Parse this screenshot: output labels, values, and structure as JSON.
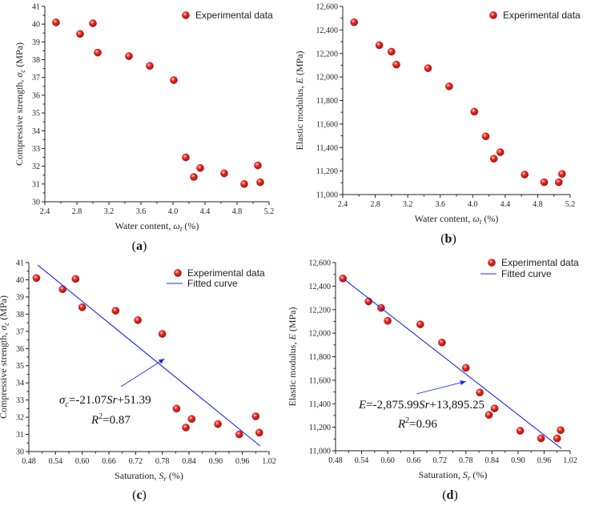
{
  "chart_data": [
    {
      "id": "a",
      "type": "scatter",
      "panel_label": "(a)",
      "xlabel": "Water content,",
      "xlabel_symbol": "ω",
      "xlabel_sub": "t",
      "xlabel_unit": "(%)",
      "ylabel": "Compressive strength,",
      "ylabel_symbol": "σ",
      "ylabel_sub": "c",
      "ylabel_unit": "(MPa)",
      "xlim": [
        2.4,
        5.2
      ],
      "ylim": [
        30,
        41
      ],
      "xticks": [
        2.4,
        2.8,
        3.2,
        3.6,
        4.0,
        4.4,
        4.8,
        5.2
      ],
      "xtick_labels": [
        "2.4",
        "2.8",
        "3.2",
        "3.6",
        "4.0",
        "4.4",
        "4.8",
        "5.2"
      ],
      "yticks": [
        30,
        31,
        32,
        33,
        34,
        35,
        36,
        37,
        38,
        39,
        40,
        41
      ],
      "ytick_labels": [
        "30",
        "31",
        "32",
        "33",
        "34",
        "35",
        "36",
        "37",
        "38",
        "39",
        "40",
        "41"
      ],
      "legend": [
        "Experimental data"
      ],
      "series": [
        {
          "name": "Experimental data",
          "x": [
            2.54,
            2.84,
            3.0,
            3.06,
            3.45,
            3.71,
            4.01,
            4.16,
            4.26,
            4.34,
            4.64,
            4.89,
            5.06,
            5.09
          ],
          "y": [
            40.1,
            39.45,
            40.05,
            38.4,
            38.2,
            37.65,
            36.85,
            32.5,
            31.4,
            31.9,
            31.6,
            31.0,
            32.05,
            31.1
          ]
        }
      ]
    },
    {
      "id": "b",
      "type": "scatter",
      "panel_label": "(b)",
      "xlabel": "Water content,",
      "xlabel_symbol": "ω",
      "xlabel_sub": "t",
      "xlabel_unit": "(%)",
      "ylabel": "Elastic modulus,",
      "ylabel_symbol": "E",
      "ylabel_sub": "",
      "ylabel_unit": "(MPa)",
      "xlim": [
        2.4,
        5.2
      ],
      "ylim": [
        11000,
        12600
      ],
      "xticks": [
        2.4,
        2.8,
        3.2,
        3.6,
        4.0,
        4.4,
        4.8,
        5.2
      ],
      "xtick_labels": [
        "2.4",
        "2.8",
        "3.2",
        "3.6",
        "4.0",
        "4.4",
        "4.8",
        "5.2"
      ],
      "yticks": [
        11000,
        11200,
        11400,
        11600,
        11800,
        12000,
        12200,
        12400,
        12600
      ],
      "ytick_labels": [
        "11,000",
        "11,200",
        "11,400",
        "11,600",
        "11,800",
        "12,000",
        "12,200",
        "12,400",
        "12,600"
      ],
      "legend": [
        "Experimental data"
      ],
      "series": [
        {
          "name": "Experimental data",
          "x": [
            2.54,
            2.85,
            3.0,
            3.06,
            3.45,
            3.71,
            4.02,
            4.16,
            4.26,
            4.34,
            4.64,
            4.88,
            5.06,
            5.1
          ],
          "y": [
            12465,
            12270,
            12215,
            12105,
            12075,
            11920,
            11705,
            11495,
            11305,
            11360,
            11170,
            11105,
            11105,
            11175
          ]
        }
      ]
    },
    {
      "id": "c",
      "type": "scatter",
      "panel_label": "(c)",
      "xlabel": "Saturation,",
      "xlabel_symbol": "S",
      "xlabel_sub": "r",
      "xlabel_unit": "(%)",
      "ylabel": "Compressive strength,",
      "ylabel_symbol": "σ",
      "ylabel_sub": "c",
      "ylabel_unit": "(MPa)",
      "xlim": [
        0.48,
        1.02
      ],
      "ylim": [
        30,
        41
      ],
      "xticks": [
        0.48,
        0.54,
        0.6,
        0.66,
        0.72,
        0.78,
        0.84,
        0.9,
        0.96,
        1.02
      ],
      "xtick_labels": [
        "0.48",
        "0.54",
        "0.60",
        "0.66",
        "0.72",
        "0.78",
        "0.84",
        "0.90",
        "0.96",
        "1.02"
      ],
      "yticks": [
        30,
        31,
        32,
        33,
        34,
        35,
        36,
        37,
        38,
        39,
        40,
        41
      ],
      "ytick_labels": [
        "30",
        "31",
        "32",
        "33",
        "34",
        "35",
        "36",
        "37",
        "38",
        "39",
        "40",
        "41"
      ],
      "legend": [
        "Experimental data",
        "Fitted curve"
      ],
      "series": [
        {
          "name": "Experimental data",
          "x": [
            0.497,
            0.556,
            0.585,
            0.6,
            0.675,
            0.725,
            0.78,
            0.812,
            0.833,
            0.846,
            0.905,
            0.953,
            0.99,
            0.998
          ],
          "y": [
            40.1,
            39.45,
            40.05,
            38.4,
            38.2,
            37.65,
            36.85,
            32.5,
            31.4,
            31.9,
            31.6,
            31.0,
            32.05,
            31.1
          ]
        },
        {
          "name": "Fitted curve",
          "type": "line",
          "x": [
            0.5,
            1.0
          ],
          "y": [
            40.855,
            30.32
          ]
        }
      ],
      "equation_lhs": "σ",
      "equation_lhs_sub": "c",
      "equation_rhs_a": "=-21.07",
      "equation_var": "Sr",
      "equation_rhs_b": "+51.39",
      "r2_symbol": "R",
      "r2_sup": "2",
      "r2_value": "=0.87",
      "arrow_target": [
        0.785,
        35.4
      ]
    },
    {
      "id": "d",
      "type": "scatter",
      "panel_label": "(d)",
      "xlabel": "Saturation,",
      "xlabel_symbol": "S",
      "xlabel_sub": "r",
      "xlabel_unit": "(%)",
      "ylabel": "Elastic modulus,",
      "ylabel_symbol": "E",
      "ylabel_sub": "",
      "ylabel_unit": "(MPa)",
      "xlim": [
        0.48,
        1.02
      ],
      "ylim": [
        11000,
        12600
      ],
      "xticks": [
        0.48,
        0.54,
        0.6,
        0.66,
        0.72,
        0.78,
        0.84,
        0.9,
        0.96,
        1.02
      ],
      "xtick_labels": [
        "0.48",
        "0.54",
        "0.60",
        "0.66",
        "0.72",
        "0.78",
        "0.84",
        "0.90",
        "0.96",
        "1.02"
      ],
      "yticks": [
        11000,
        11200,
        11400,
        11600,
        11800,
        12000,
        12200,
        12400,
        12600
      ],
      "ytick_labels": [
        "11,000",
        "11,200",
        "11,400",
        "11,600",
        "11,800",
        "12,000",
        "12,200",
        "12,400",
        "12,600"
      ],
      "legend": [
        "Experimental data",
        "Fitted curve"
      ],
      "series": [
        {
          "name": "Experimental data",
          "x": [
            0.497,
            0.556,
            0.585,
            0.6,
            0.675,
            0.725,
            0.78,
            0.812,
            0.833,
            0.846,
            0.905,
            0.953,
            0.99,
            0.998
          ],
          "y": [
            12465,
            12270,
            12215,
            12105,
            12075,
            11920,
            11705,
            11495,
            11305,
            11360,
            11170,
            11105,
            11105,
            11175
          ]
        },
        {
          "name": "Fitted curve",
          "type": "line",
          "x": [
            0.5,
            1.0
          ],
          "y": [
            12457.3,
            11019.3
          ]
        }
      ],
      "equation_lhs": "E",
      "equation_lhs_sub": "",
      "equation_rhs_a": "=-2,875.99",
      "equation_var": "Sr",
      "equation_rhs_b": "+13,895.25",
      "r2_symbol": "R",
      "r2_sup": "2",
      "r2_value": "=0.96",
      "arrow_target": [
        0.78,
        11590
      ]
    }
  ],
  "colors": {
    "marker_fill": "#e8231d",
    "marker_highlight": "#ffd0cc",
    "marker_edge": "#9a1410",
    "fit_line": "#1b2be0",
    "axis": "#222222"
  }
}
